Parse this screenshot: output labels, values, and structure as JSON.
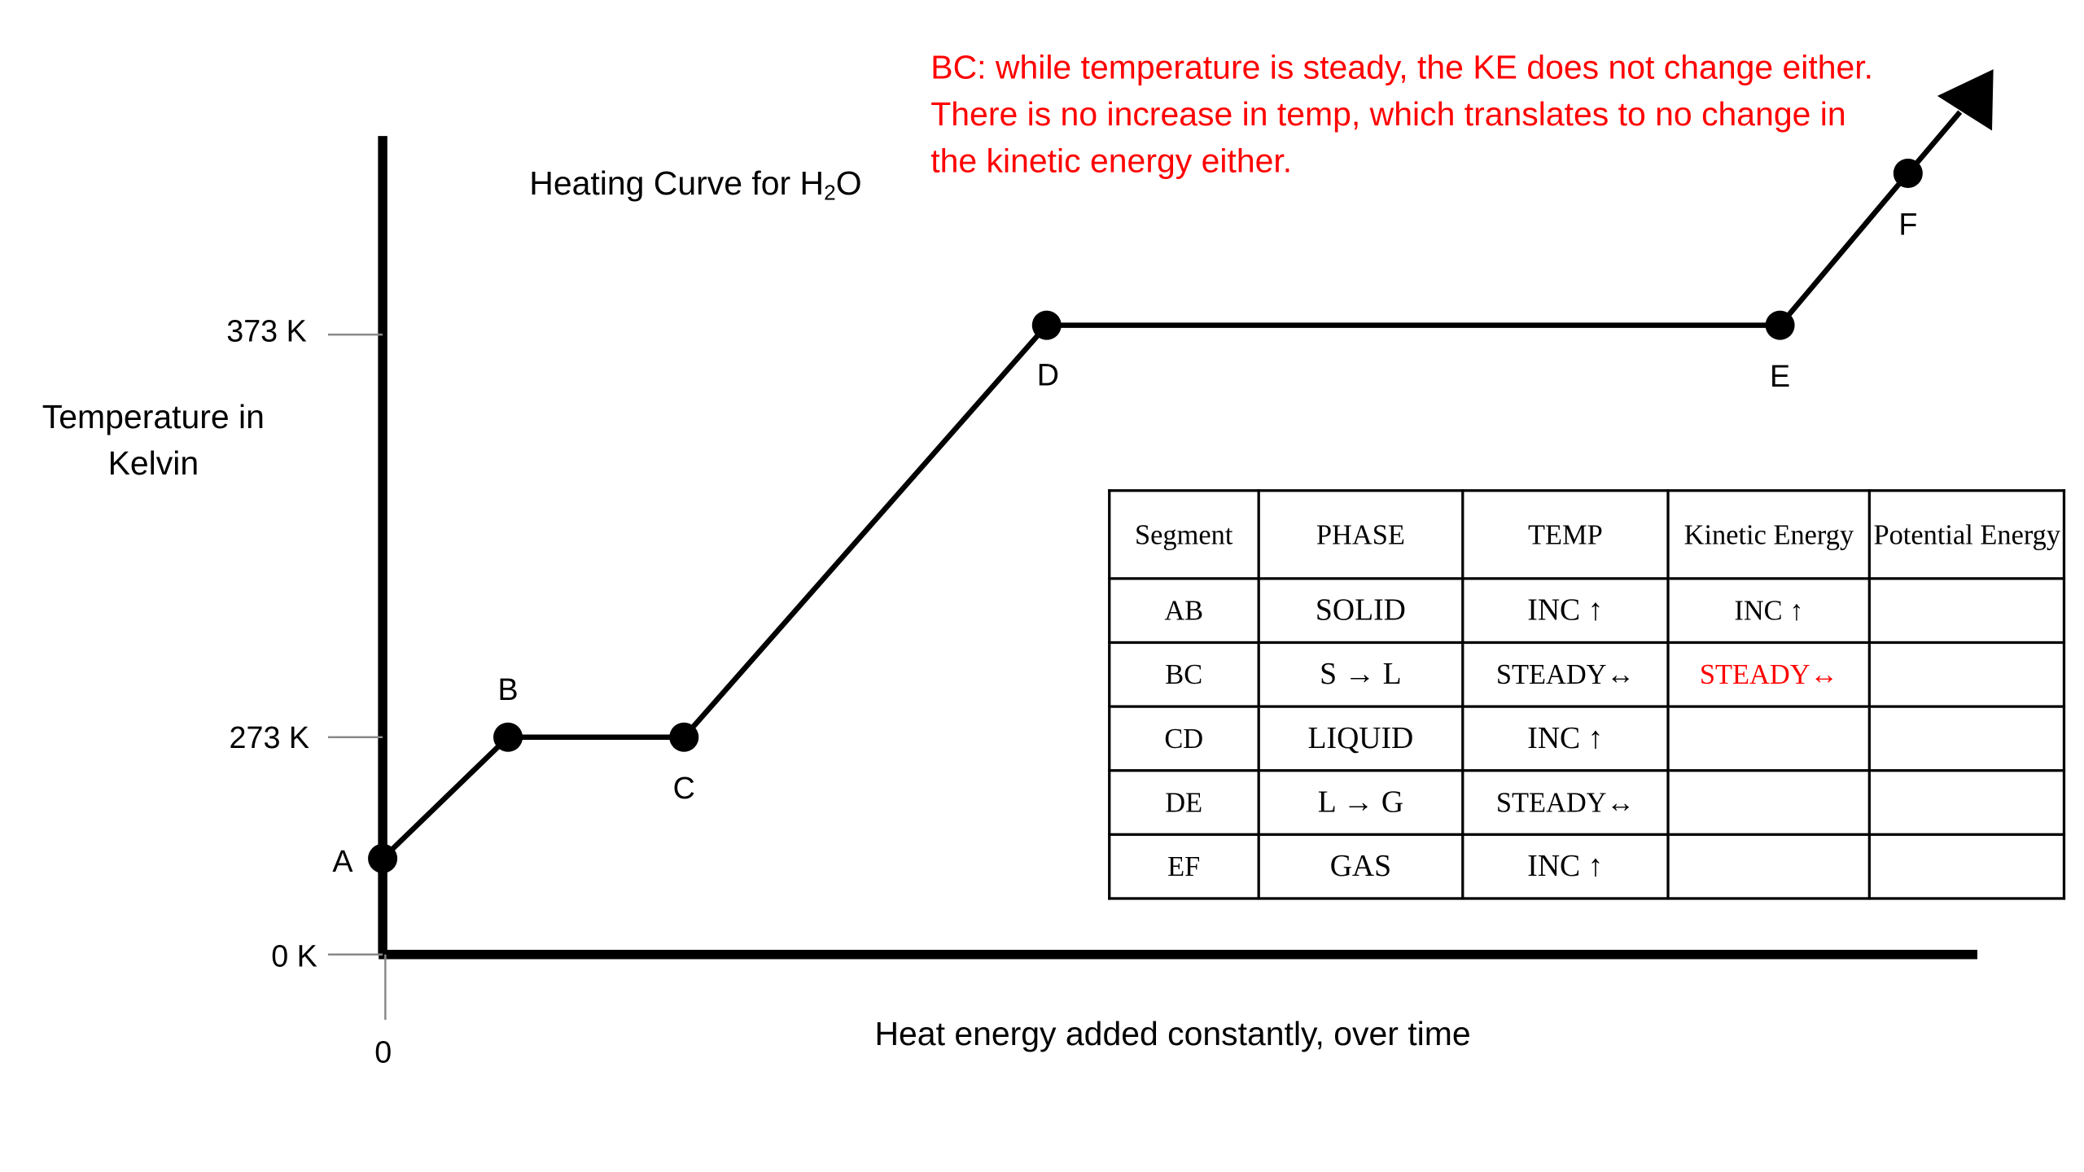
{
  "diagram": {
    "title_main": "Heating Curve for H",
    "title_sub": "2",
    "title_end": "O",
    "annotation": "BC:  while temperature is steady, the KE does not change either.  There is no increase in temp, which translates to no change in the kinetic energy either.",
    "y_axis_label": "Temperature in Kelvin",
    "x_axis_label": "Heat energy added constantly, over time",
    "x_tick": "0",
    "y_ticks": [
      "373 K",
      "273 K",
      "0 K"
    ],
    "points": [
      {
        "label": "A",
        "temperature_K": 90
      },
      {
        "label": "B",
        "temperature_K": 273
      },
      {
        "label": "C",
        "temperature_K": 273
      },
      {
        "label": "D",
        "temperature_K": 373
      },
      {
        "label": "E",
        "temperature_K": 373
      },
      {
        "label": "F",
        "temperature_K": 420
      }
    ],
    "colors": {
      "annotation": "#ff0000",
      "curve": "#000000"
    }
  },
  "table": {
    "headers": [
      "Segment",
      "PHASE",
      "TEMP",
      "Kinetic Energy",
      "Potential Energy"
    ],
    "rows": [
      [
        "AB",
        "SOLID",
        "INC ↑",
        "INC ↑",
        ""
      ],
      [
        "BC",
        "S → L",
        "STEADY↔",
        "STEADY↔",
        ""
      ],
      [
        "CD",
        "LIQUID",
        "INC ↑",
        "",
        ""
      ],
      [
        "DE",
        "L → G",
        "STEADY↔",
        "",
        ""
      ],
      [
        "EF",
        "GAS",
        "INC ↑",
        "",
        ""
      ]
    ]
  }
}
